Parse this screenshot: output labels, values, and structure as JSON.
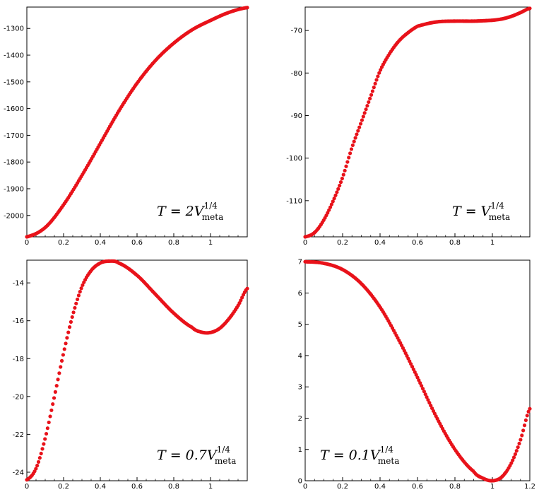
{
  "colors": {
    "curve": "#e8121a",
    "axis": "#000000"
  },
  "chart_data": [
    {
      "type": "scatter",
      "xlim": [
        0,
        1.2
      ],
      "ylim": [
        -2080,
        -1220
      ],
      "xticks": [
        0,
        0.2,
        0.4,
        0.6,
        0.8,
        1
      ],
      "xtick_labels": [
        "0",
        "0.2",
        "0.4",
        "0.6",
        "0.8",
        "1"
      ],
      "yticks": [
        -2000,
        -1900,
        -1800,
        -1700,
        -1600,
        -1500,
        -1400,
        -1300
      ],
      "ytick_labels": [
        "-2000",
        "-1900",
        "-1800",
        "-1700",
        "-1600",
        "-1500",
        "-1400",
        "-1300"
      ],
      "annotation": {
        "prefix": "T = 2V",
        "sup": "1/4",
        "sub": "meta"
      },
      "x": [
        0,
        0.1,
        0.2,
        0.3,
        0.4,
        0.5,
        0.6,
        0.7,
        0.8,
        0.9,
        1.0,
        1.1,
        1.2
      ],
      "y": [
        -2080,
        -2045,
        -1960,
        -1850,
        -1730,
        -1610,
        -1505,
        -1420,
        -1355,
        -1305,
        -1270,
        -1240,
        -1222
      ]
    },
    {
      "type": "scatter",
      "xlim": [
        0,
        1.2
      ],
      "ylim": [
        -118.5,
        -64.5
      ],
      "xticks": [
        0,
        0.2,
        0.4,
        0.6,
        0.8,
        1
      ],
      "xtick_labels": [
        "0",
        "0.2",
        "0.4",
        "0.6",
        "0.8",
        "1"
      ],
      "yticks": [
        -110,
        -100,
        -90,
        -80,
        -70
      ],
      "ytick_labels": [
        "-110",
        "-100",
        "-90",
        "-80",
        "-70"
      ],
      "annotation": {
        "prefix": "T = V",
        "sup": "1/4",
        "sub": "meta"
      },
      "x": [
        0,
        0.05,
        0.1,
        0.15,
        0.2,
        0.25,
        0.3,
        0.35,
        0.4,
        0.45,
        0.5,
        0.55,
        0.6,
        0.7,
        0.8,
        0.9,
        1.0,
        1.05,
        1.1,
        1.15,
        1.2
      ],
      "y": [
        -118.5,
        -117.5,
        -114.5,
        -110,
        -104.5,
        -97.5,
        -91.5,
        -85.5,
        -79.5,
        -75.5,
        -72.5,
        -70.5,
        -69,
        -68,
        -67.8,
        -67.8,
        -67.6,
        -67.3,
        -66.7,
        -65.8,
        -64.8
      ]
    },
    {
      "type": "scatter",
      "xlim": [
        0,
        1.2
      ],
      "ylim": [
        -24.45,
        -12.8
      ],
      "xticks": [
        0,
        0.2,
        0.4,
        0.6,
        0.8,
        1
      ],
      "xtick_labels": [
        "0",
        "0.2",
        "0.4",
        "0.6",
        "0.8",
        "1"
      ],
      "yticks": [
        -24,
        -22,
        -20,
        -18,
        -16,
        -14
      ],
      "ytick_labels": [
        "-24",
        "-22",
        "-20",
        "-18",
        "-16",
        "-14"
      ],
      "annotation": {
        "prefix": "T = 0.7V",
        "sup": "1/4",
        "sub": "meta"
      },
      "x": [
        0,
        0.05,
        0.1,
        0.15,
        0.2,
        0.25,
        0.3,
        0.35,
        0.4,
        0.45,
        0.5,
        0.6,
        0.7,
        0.8,
        0.9,
        0.95,
        1.0,
        1.05,
        1.1,
        1.15,
        1.2
      ],
      "y": [
        -24.4,
        -23.8,
        -22.2,
        -20.0,
        -17.7,
        -15.7,
        -14.2,
        -13.35,
        -12.95,
        -12.85,
        -12.95,
        -13.6,
        -14.6,
        -15.6,
        -16.35,
        -16.6,
        -16.62,
        -16.4,
        -15.9,
        -15.2,
        -14.3
      ]
    },
    {
      "type": "scatter",
      "xlim": [
        0,
        1.2
      ],
      "ylim": [
        0,
        7.05
      ],
      "xticks": [
        0,
        0.2,
        0.4,
        0.6,
        0.8,
        1,
        1.2
      ],
      "xtick_labels": [
        "0",
        "0.2",
        "0.4",
        "0.6",
        "0.8",
        "1",
        "1.2"
      ],
      "yticks": [
        0,
        1,
        2,
        3,
        4,
        5,
        6,
        7
      ],
      "ytick_labels": [
        "0",
        "1",
        "2",
        "3",
        "4",
        "5",
        "6",
        "7"
      ],
      "annotation": {
        "prefix": "T = 0.1V",
        "sup": "1/4",
        "sub": "meta"
      },
      "x": [
        0,
        0.1,
        0.2,
        0.3,
        0.4,
        0.5,
        0.6,
        0.7,
        0.8,
        0.9,
        0.95,
        1.0,
        1.05,
        1.1,
        1.15,
        1.2
      ],
      "y": [
        7.0,
        6.95,
        6.75,
        6.3,
        5.55,
        4.5,
        3.3,
        2.05,
        1.0,
        0.3,
        0.08,
        0.0,
        0.12,
        0.55,
        1.3,
        2.3
      ]
    }
  ]
}
